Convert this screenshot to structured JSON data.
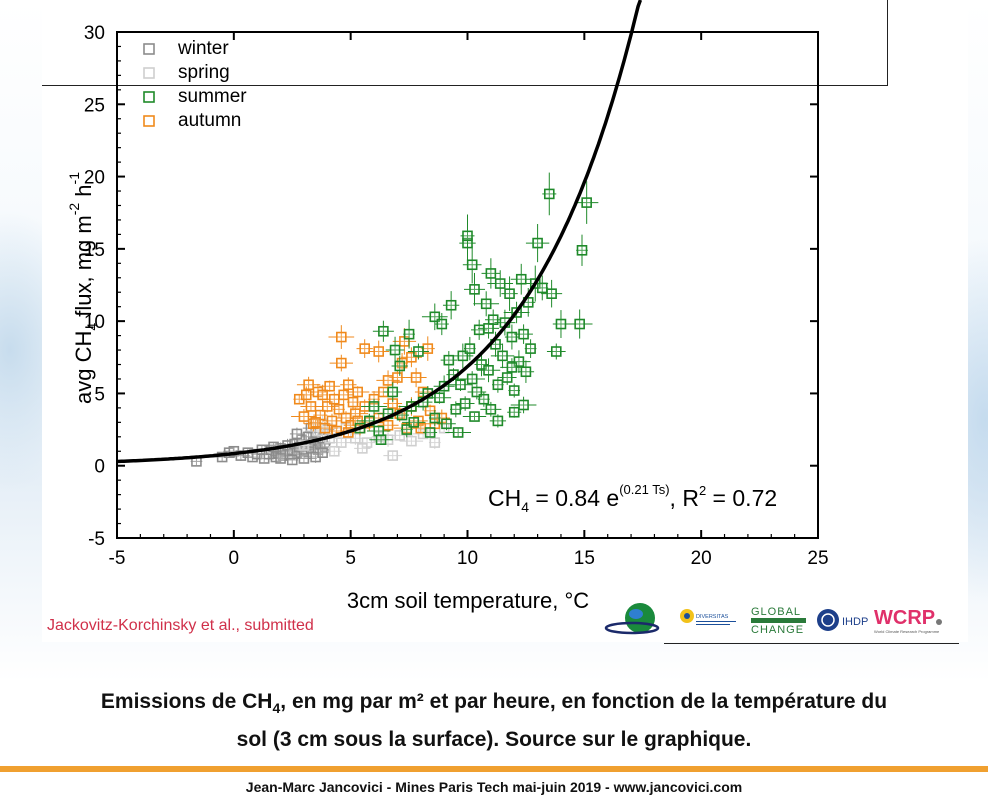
{
  "chart_data": {
    "type": "scatter",
    "xlabel": "3cm soil temperature, °C",
    "ylabel": "avg CH4 flux, mg m-2 h-1",
    "xlim": [
      -5,
      25
    ],
    "ylim": [
      -5,
      30
    ],
    "x_ticks": [
      "-5",
      "0",
      "5",
      "10",
      "15",
      "20",
      "25"
    ],
    "y_ticks": [
      "-5",
      "0",
      "5",
      "10",
      "15",
      "20",
      "25",
      "30"
    ],
    "grid": false,
    "legend_position": "top-left",
    "legend": [
      {
        "label": "winter",
        "color": "#8c8c8c"
      },
      {
        "label": "spring",
        "color": "#cfcfcf"
      },
      {
        "label": "summer",
        "color": "#1f8a2a"
      },
      {
        "label": "autumn",
        "color": "#f08a1c"
      }
    ],
    "fit": {
      "a": 0.84,
      "b": 0.21,
      "label": "CH4 = 0.84 e^(0.21 Ts), R2 = 0.72"
    },
    "annotation": {
      "ch": "CH",
      "sub4": "4",
      "eq_mid": " = 0.84 e",
      "exp": "(0.21 Ts)",
      "r": ", R",
      "sup2": "2",
      "tail": " = 0.72"
    },
    "ylabel_parts": {
      "avg": "avg CH",
      "sub": "4",
      "flux": " flux, mg m",
      "m2": "-2",
      "h": " h",
      "h1": "-1"
    },
    "series": [
      {
        "name": "winter",
        "points": [
          [
            -1.6,
            0.3
          ],
          [
            -0.5,
            0.6
          ],
          [
            -0.2,
            0.9
          ],
          [
            0,
            1.0
          ],
          [
            0.3,
            0.7
          ],
          [
            0.6,
            0.9
          ],
          [
            0.8,
            0.6
          ],
          [
            1.0,
            0.8
          ],
          [
            1.2,
            1.1
          ],
          [
            1.3,
            0.5
          ],
          [
            1.5,
            0.8
          ],
          [
            1.6,
            1.1
          ],
          [
            1.8,
            0.6
          ],
          [
            1.9,
            0.9
          ],
          [
            2.0,
            1.2
          ],
          [
            2.1,
            0.7
          ],
          [
            2.2,
            1.0
          ],
          [
            2.3,
            1.4
          ],
          [
            2.4,
            0.8
          ],
          [
            2.5,
            1.1
          ],
          [
            2.6,
            1.5
          ],
          [
            2.7,
            0.9
          ],
          [
            2.8,
            1.3
          ],
          [
            2.9,
            1.8
          ],
          [
            3.0,
            1.0
          ],
          [
            3.1,
            1.4
          ],
          [
            3.2,
            2.0
          ],
          [
            3.3,
            1.2
          ],
          [
            3.4,
            1.6
          ],
          [
            3.5,
            2.3
          ],
          [
            3.6,
            1.1
          ],
          [
            3.7,
            1.5
          ],
          [
            3.8,
            1.9
          ],
          [
            3.9,
            1.3
          ],
          [
            4.0,
            2.5
          ],
          [
            2.5,
            0.4
          ],
          [
            3.0,
            0.5
          ],
          [
            3.5,
            0.6
          ],
          [
            2.0,
            0.5
          ],
          [
            1.7,
            1.3
          ],
          [
            3.3,
            2.6
          ],
          [
            2.7,
            2.2
          ],
          [
            3.8,
            0.9
          ]
        ]
      },
      {
        "name": "spring",
        "points": [
          [
            3.0,
            1.4
          ],
          [
            3.6,
            2.4
          ],
          [
            4.1,
            1.9
          ],
          [
            4.6,
            1.6
          ],
          [
            5.2,
            1.9
          ],
          [
            5.7,
            1.6
          ],
          [
            6.2,
            2.0
          ],
          [
            6.6,
            1.8
          ],
          [
            7.1,
            2.1
          ],
          [
            7.6,
            1.7
          ],
          [
            8.1,
            2.2
          ],
          [
            6.8,
            0.7
          ],
          [
            5.5,
            1.2
          ],
          [
            4.3,
            1.0
          ],
          [
            8.6,
            1.6
          ],
          [
            9.0,
            2.6
          ],
          [
            4.8,
            2.6
          ],
          [
            3.8,
            2.9
          ]
        ]
      },
      {
        "name": "summer",
        "points": [
          [
            5.4,
            2.6
          ],
          [
            5.8,
            3.1
          ],
          [
            6.2,
            2.4
          ],
          [
            6.6,
            3.6
          ],
          [
            6.8,
            5.1
          ],
          [
            7.1,
            6.9
          ],
          [
            7.2,
            3.5
          ],
          [
            7.4,
            2.5
          ],
          [
            7.6,
            4.1
          ],
          [
            7.7,
            3.0
          ],
          [
            7.9,
            7.9
          ],
          [
            8.1,
            4.4
          ],
          [
            8.3,
            5.0
          ],
          [
            8.4,
            2.3
          ],
          [
            8.6,
            3.3
          ],
          [
            8.6,
            10.3
          ],
          [
            8.8,
            4.7
          ],
          [
            9.0,
            5.5
          ],
          [
            9.1,
            2.9
          ],
          [
            9.2,
            7.3
          ],
          [
            9.4,
            6.3
          ],
          [
            9.5,
            3.9
          ],
          [
            9.6,
            2.3
          ],
          [
            9.7,
            5.6
          ],
          [
            9.8,
            7.6
          ],
          [
            9.9,
            4.3
          ],
          [
            10.0,
            15.4
          ],
          [
            10.0,
            15.9
          ],
          [
            10.1,
            8.1
          ],
          [
            10.2,
            6.0
          ],
          [
            10.3,
            3.4
          ],
          [
            10.3,
            12.2
          ],
          [
            10.4,
            5.1
          ],
          [
            10.5,
            9.4
          ],
          [
            10.6,
            7.0
          ],
          [
            10.7,
            4.6
          ],
          [
            10.8,
            11.2
          ],
          [
            10.9,
            6.6
          ],
          [
            11.0,
            3.9
          ],
          [
            11.0,
            13.3
          ],
          [
            11.1,
            10.1
          ],
          [
            11.2,
            8.4
          ],
          [
            11.3,
            5.6
          ],
          [
            11.4,
            12.6
          ],
          [
            11.5,
            7.6
          ],
          [
            11.6,
            9.9
          ],
          [
            11.7,
            6.1
          ],
          [
            11.8,
            11.9
          ],
          [
            11.9,
            8.9
          ],
          [
            12.0,
            5.2
          ],
          [
            12.1,
            10.6
          ],
          [
            12.2,
            7.2
          ],
          [
            12.3,
            12.9
          ],
          [
            12.4,
            9.1
          ],
          [
            12.5,
            6.5
          ],
          [
            12.6,
            11.3
          ],
          [
            12.7,
            8.1
          ],
          [
            12.9,
            12.6
          ],
          [
            13.0,
            15.4
          ],
          [
            13.6,
            11.9
          ],
          [
            13.8,
            7.9
          ],
          [
            14.0,
            9.8
          ],
          [
            13.5,
            18.8
          ],
          [
            14.9,
            14.9
          ],
          [
            14.8,
            9.8
          ],
          [
            15.1,
            18.2
          ],
          [
            6.4,
            9.3
          ],
          [
            6.9,
            8.0
          ],
          [
            11.3,
            3.1
          ],
          [
            12.0,
            3.7
          ],
          [
            13.2,
            12.3
          ],
          [
            12.4,
            4.2
          ],
          [
            11.9,
            6.8
          ],
          [
            10.9,
            9.5
          ],
          [
            10.2,
            13.9
          ],
          [
            9.3,
            11.1
          ],
          [
            8.9,
            9.8
          ],
          [
            7.5,
            9.1
          ],
          [
            6.0,
            4.1
          ],
          [
            6.3,
            1.8
          ]
        ]
      },
      {
        "name": "autumn",
        "points": [
          [
            2.8,
            4.6
          ],
          [
            3.0,
            3.4
          ],
          [
            3.2,
            5.6
          ],
          [
            3.3,
            4.1
          ],
          [
            3.4,
            2.9
          ],
          [
            3.6,
            5.1
          ],
          [
            3.7,
            3.5
          ],
          [
            3.8,
            4.9
          ],
          [
            3.9,
            2.6
          ],
          [
            4.0,
            4.1
          ],
          [
            4.1,
            5.5
          ],
          [
            4.2,
            3.1
          ],
          [
            4.3,
            4.6
          ],
          [
            4.4,
            2.4
          ],
          [
            4.5,
            3.9
          ],
          [
            4.6,
            8.9
          ],
          [
            4.6,
            7.1
          ],
          [
            4.7,
            4.9
          ],
          [
            4.8,
            3.3
          ],
          [
            4.9,
            5.6
          ],
          [
            5.0,
            2.8
          ],
          [
            5.1,
            4.4
          ],
          [
            5.2,
            3.6
          ],
          [
            5.3,
            5.1
          ],
          [
            5.4,
            2.6
          ],
          [
            5.6,
            4.1
          ],
          [
            5.6,
            8.1
          ],
          [
            5.8,
            3.0
          ],
          [
            6.0,
            4.6
          ],
          [
            6.2,
            3.3
          ],
          [
            6.4,
            5.1
          ],
          [
            6.6,
            2.8
          ],
          [
            6.8,
            4.3
          ],
          [
            7.0,
            6.1
          ],
          [
            7.1,
            3.6
          ],
          [
            7.2,
            7.1
          ],
          [
            7.4,
            2.6
          ],
          [
            7.6,
            4.1
          ],
          [
            7.8,
            6.1
          ],
          [
            7.9,
            3.1
          ],
          [
            8.1,
            5.1
          ],
          [
            8.3,
            8.1
          ],
          [
            8.4,
            3.8
          ],
          [
            8.6,
            2.9
          ],
          [
            7.3,
            8.6
          ],
          [
            6.2,
            7.9
          ],
          [
            5.3,
            3.1
          ],
          [
            8.9,
            3.3
          ],
          [
            3.1,
            4.9
          ],
          [
            3.5,
            3.0
          ],
          [
            4.9,
            2.3
          ],
          [
            6.6,
            5.9
          ],
          [
            7.6,
            7.5
          ],
          [
            8.0,
            2.6
          ]
        ]
      }
    ]
  },
  "credit": "Jackovitz-Korchinsky et al., submitted",
  "caption": {
    "line1_a": "Emissions de CH",
    "line1_sub": "4",
    "line1_b": ", en mg par m² et par heure, en fonction de la température du",
    "line2": "sol (3 cm sous la surface). Source sur le graphique."
  },
  "footer": "Jean-Marc Jancovici - Mines Paris Tech mai-juin 2019 - www.jancovici.com",
  "logos": {
    "global": "GLOBAL",
    "change": "CHANGE",
    "ihdp": "IHDP",
    "wcrp": "WCRP",
    "wcrp_sub": "World Climate Research Programme",
    "diversitas": "DIVERSITAS"
  },
  "colors": {
    "winter": "#8c8c8c",
    "spring": "#cfcfcf",
    "summer": "#1f8a2a",
    "autumn": "#f08a1c",
    "fit": "#000000",
    "credit": "#d0304a",
    "rule": "#f0a030"
  }
}
